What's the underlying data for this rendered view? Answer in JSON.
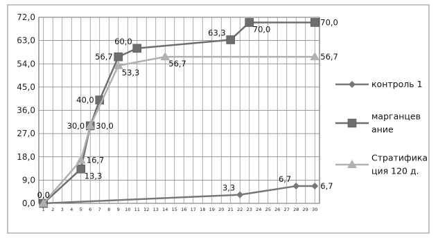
{
  "chart_data": {
    "type": "line",
    "x": [
      1,
      2,
      3,
      4,
      5,
      6,
      7,
      8,
      9,
      10,
      11,
      12,
      13,
      14,
      15,
      16,
      17,
      18,
      19,
      20,
      21,
      22,
      23,
      24,
      25,
      26,
      27,
      28,
      29,
      30
    ],
    "x_tick_labels": [
      "1",
      "2",
      "3",
      "4",
      "5",
      "6",
      "7",
      "8",
      "9",
      "10",
      "11",
      "12",
      "13",
      "14",
      "15",
      "16",
      "17",
      "18",
      "19",
      "20",
      "21",
      "22",
      "23",
      "24",
      "25",
      "26",
      "27",
      "28",
      "29",
      "30"
    ],
    "y_tick_labels": [
      "0,0",
      "9,0",
      "18,0",
      "27,0",
      "36,0",
      "45,0",
      "54,0",
      "63,0",
      "72,0"
    ],
    "ylim": [
      0,
      72
    ],
    "grid": true,
    "legend_position": "right",
    "series": [
      {
        "name": "контроль 1",
        "legend_lines": [
          "контроль 1"
        ],
        "color": "#777777",
        "marker": "diamond",
        "points": [
          [
            1,
            0
          ],
          [
            22,
            3.3
          ],
          [
            28,
            6.7
          ],
          [
            30,
            6.7
          ]
        ],
        "labels": [
          {
            "x": 1,
            "y": 0,
            "text": "0,0",
            "anchor": "above"
          },
          {
            "x": 22,
            "y": 3.3,
            "text": "3,3",
            "anchor": "above-left"
          },
          {
            "x": 28,
            "y": 6.7,
            "text": "6,7",
            "anchor": "above-left"
          },
          {
            "x": 30,
            "y": 6.7,
            "text": "6,7",
            "anchor": "right"
          }
        ]
      },
      {
        "name": "марганцевание",
        "legend_lines": [
          "марганцев",
          "ание"
        ],
        "color": "#6e6e6e",
        "marker": "square",
        "points": [
          [
            1,
            0
          ],
          [
            5,
            13.3
          ],
          [
            6,
            30.0
          ],
          [
            7,
            40.0
          ],
          [
            9,
            56.7
          ],
          [
            11,
            60.0
          ],
          [
            21,
            63.3
          ],
          [
            23,
            70.0
          ],
          [
            30,
            70.0
          ]
        ],
        "labels": [
          {
            "x": 1,
            "y": 0,
            "text": "0,0",
            "anchor": "above"
          },
          {
            "x": 5,
            "y": 13.3,
            "text": "13,3",
            "anchor": "below-right"
          },
          {
            "x": 6,
            "y": 30.0,
            "text": "30,0",
            "anchor": "left"
          },
          {
            "x": 7,
            "y": 40.0,
            "text": "40,0",
            "anchor": "left"
          },
          {
            "x": 9,
            "y": 56.7,
            "text": "56,7",
            "anchor": "left"
          },
          {
            "x": 11,
            "y": 60.0,
            "text": "60,0",
            "anchor": "above-left"
          },
          {
            "x": 21,
            "y": 63.3,
            "text": "63,3",
            "anchor": "above-left"
          },
          {
            "x": 23,
            "y": 70.0,
            "text": "70,0",
            "anchor": "below-right"
          },
          {
            "x": 30,
            "y": 70.0,
            "text": "70,0",
            "anchor": "right"
          }
        ]
      },
      {
        "name": "Стратификация 120 д.",
        "legend_lines": [
          "Стратифика",
          "ция 120 д."
        ],
        "color": "#b0b0b0",
        "marker": "triangle",
        "points": [
          [
            1,
            0
          ],
          [
            5,
            16.7
          ],
          [
            6,
            30.0
          ],
          [
            9,
            53.3
          ],
          [
            14,
            56.7
          ],
          [
            30,
            56.7
          ]
        ],
        "labels": [
          {
            "x": 5,
            "y": 16.7,
            "text": "16,7",
            "anchor": "right"
          },
          {
            "x": 6,
            "y": 30.0,
            "text": "30,0",
            "anchor": "right"
          },
          {
            "x": 9,
            "y": 53.3,
            "text": "53,3",
            "anchor": "below-right"
          },
          {
            "x": 14,
            "y": 56.7,
            "text": "56,7",
            "anchor": "below-right"
          },
          {
            "x": 30,
            "y": 56.7,
            "text": "56,7",
            "anchor": "right"
          }
        ]
      }
    ]
  }
}
